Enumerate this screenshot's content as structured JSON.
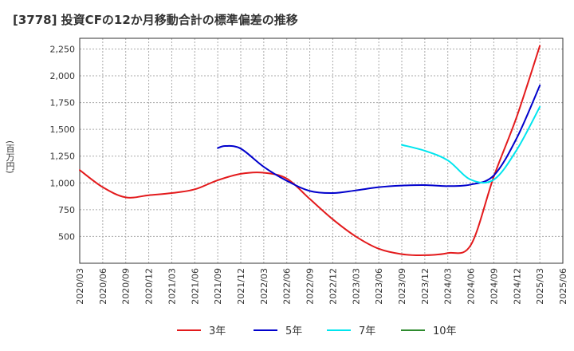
{
  "chart_data": {
    "type": "line",
    "title": "[3778]  投資CFの12か月移動合計の標準偏差の推移",
    "ylabel": "(百万円)",
    "xlabel": "",
    "ylim": [
      250,
      2350
    ],
    "yticks": [
      500,
      750,
      1000,
      1250,
      1500,
      1750,
      2000,
      2250
    ],
    "ytick_labels": [
      "500",
      "750",
      "1,000",
      "1,250",
      "1,500",
      "1,750",
      "2,000",
      "2,250"
    ],
    "x_categories": [
      "2020/03",
      "2020/06",
      "2020/09",
      "2020/12",
      "2021/03",
      "2021/06",
      "2021/09",
      "2021/12",
      "2022/03",
      "2022/06",
      "2022/09",
      "2022/12",
      "2023/03",
      "2023/06",
      "2023/09",
      "2023/12",
      "2024/03",
      "2024/06",
      "2024/09",
      "2024/12",
      "2025/03",
      "2025/06"
    ],
    "grid": true,
    "legend_position": "bottom",
    "series": [
      {
        "name": "3年",
        "color": "#e31a1c",
        "points": [
          [
            "2020/03",
            1120
          ],
          [
            "2020/06",
            960
          ],
          [
            "2020/09",
            865
          ],
          [
            "2020/12",
            885
          ],
          [
            "2021/03",
            905
          ],
          [
            "2021/06",
            940
          ],
          [
            "2021/09",
            1025
          ],
          [
            "2021/12",
            1085
          ],
          [
            "2022/03",
            1095
          ],
          [
            "2022/06",
            1040
          ],
          [
            "2022/09",
            850
          ],
          [
            "2022/12",
            660
          ],
          [
            "2023/03",
            500
          ],
          [
            "2023/06",
            385
          ],
          [
            "2023/09",
            335
          ],
          [
            "2023/12",
            325
          ],
          [
            "2024/03",
            345
          ],
          [
            "2024/06",
            420
          ],
          [
            "2024/09",
            1060
          ],
          [
            "2024/12",
            1620
          ],
          [
            "2025/03",
            2280
          ]
        ]
      },
      {
        "name": "5年",
        "color": "#0000cc",
        "points": [
          [
            "2021/09",
            1325
          ],
          [
            "2021/10",
            1345
          ],
          [
            "2021/12",
            1320
          ],
          [
            "2022/03",
            1150
          ],
          [
            "2022/06",
            1020
          ],
          [
            "2022/09",
            925
          ],
          [
            "2022/12",
            905
          ],
          [
            "2023/03",
            930
          ],
          [
            "2023/06",
            960
          ],
          [
            "2023/09",
            975
          ],
          [
            "2023/12",
            980
          ],
          [
            "2024/03",
            970
          ],
          [
            "2024/06",
            985
          ],
          [
            "2024/09",
            1070
          ],
          [
            "2024/12",
            1420
          ],
          [
            "2025/03",
            1910
          ]
        ]
      },
      {
        "name": "7年",
        "color": "#00e5ee",
        "points": [
          [
            "2023/09",
            1355
          ],
          [
            "2023/12",
            1300
          ],
          [
            "2024/03",
            1210
          ],
          [
            "2024/06",
            1030
          ],
          [
            "2024/09",
            1030
          ],
          [
            "2024/12",
            1310
          ],
          [
            "2025/03",
            1710
          ]
        ]
      },
      {
        "name": "10年",
        "color": "#2e8b2e",
        "points": []
      }
    ]
  }
}
